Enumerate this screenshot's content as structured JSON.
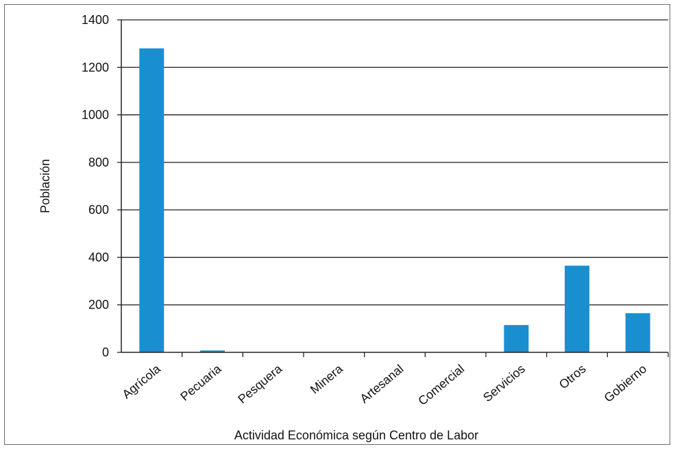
{
  "chart_data": {
    "type": "bar",
    "title": "",
    "xlabel": "Actividad Económica según Centro de Labor",
    "ylabel": "Población",
    "categories": [
      "Agrícola",
      "Pecuaria",
      "Pesquera",
      "Minera",
      "Artesanal",
      "Comercial",
      "Servicios",
      "Otros",
      "Gobierno"
    ],
    "values": [
      1280,
      8,
      0,
      0,
      0,
      0,
      115,
      365,
      165
    ],
    "ylim": [
      0,
      1400
    ],
    "yticks": [
      0,
      200,
      400,
      600,
      800,
      1000,
      1200,
      1400
    ],
    "grid": true,
    "legend": "none",
    "bar_color": "#1a8fd0"
  }
}
